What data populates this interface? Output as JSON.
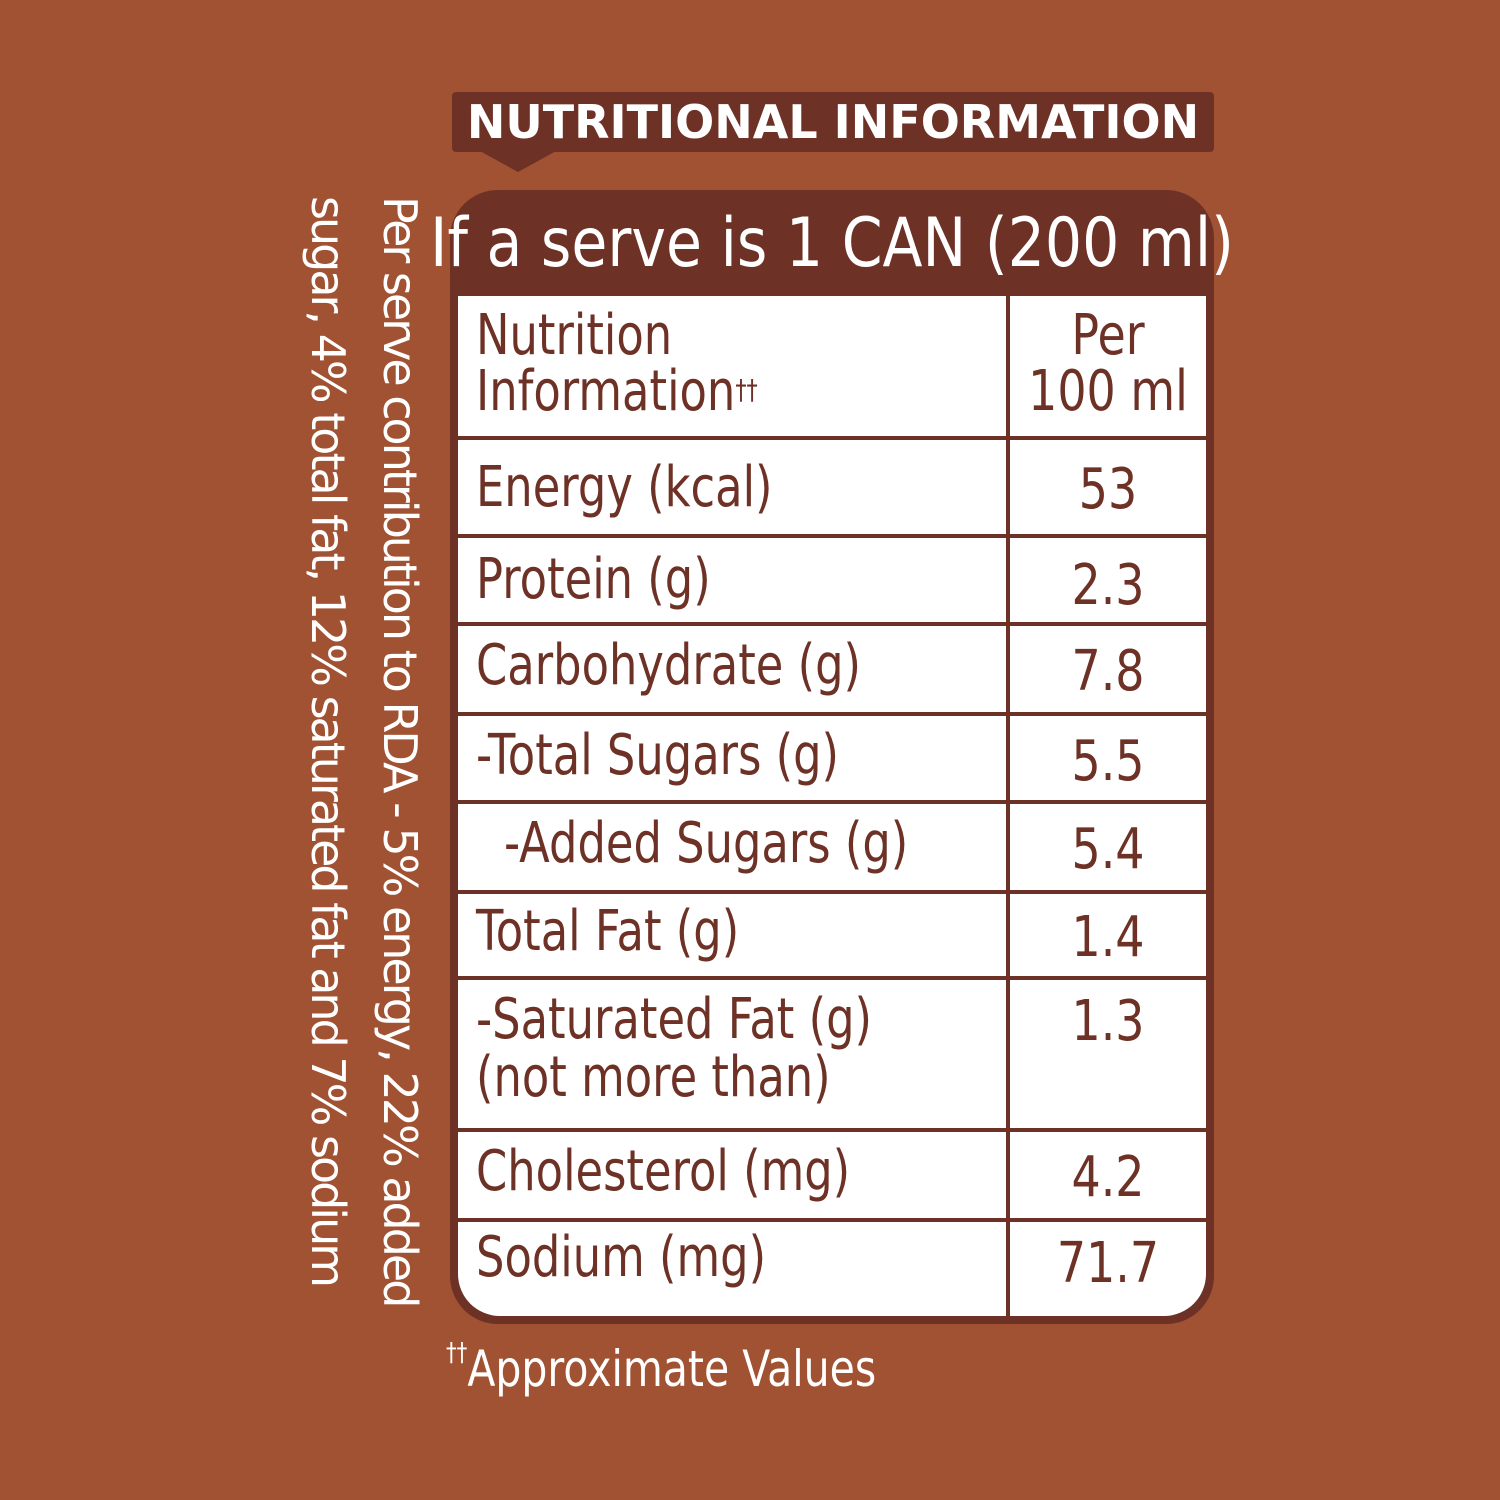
{
  "header": {
    "title": "NUTRITIONAL INFORMATION"
  },
  "serve": {
    "title": "If a serve is 1 CAN (200 ml)"
  },
  "table": {
    "header_label_line1": "Nutrition",
    "header_label_line2": "Information",
    "header_label_mark": "††",
    "header_value_line1": "Per",
    "header_value_line2": "100 ml",
    "rows": [
      {
        "label": "Energy (kcal)",
        "value": "53"
      },
      {
        "label": "Protein (g)",
        "value": "2.3"
      },
      {
        "label": "Carbohydrate (g)",
        "value": "7.8"
      },
      {
        "label": "-Total Sugars (g)",
        "value": "5.5"
      },
      {
        "label": "-Added Sugars (g)",
        "value": "5.4"
      },
      {
        "label": "Total Fat (g)",
        "value": "1.4"
      },
      {
        "label": "-Saturated Fat (g)",
        "label_line2": "(not more than)",
        "value": "1.3"
      },
      {
        "label": "Cholesterol (mg)",
        "value": "4.2"
      },
      {
        "label": "Sodium (mg)",
        "value": "71.7"
      }
    ]
  },
  "side_note": {
    "line1": "Per serve contribution to RDA - 5% energy, 22% added",
    "line2": "sugar, 4% total fat, 12% saturated fat and 7% sodium"
  },
  "footnote": {
    "mark": "††",
    "text": "Approximate Values"
  },
  "colors": {
    "background": "#A05232",
    "dark_brown": "#6E3126",
    "white": "#FFFFFF"
  }
}
